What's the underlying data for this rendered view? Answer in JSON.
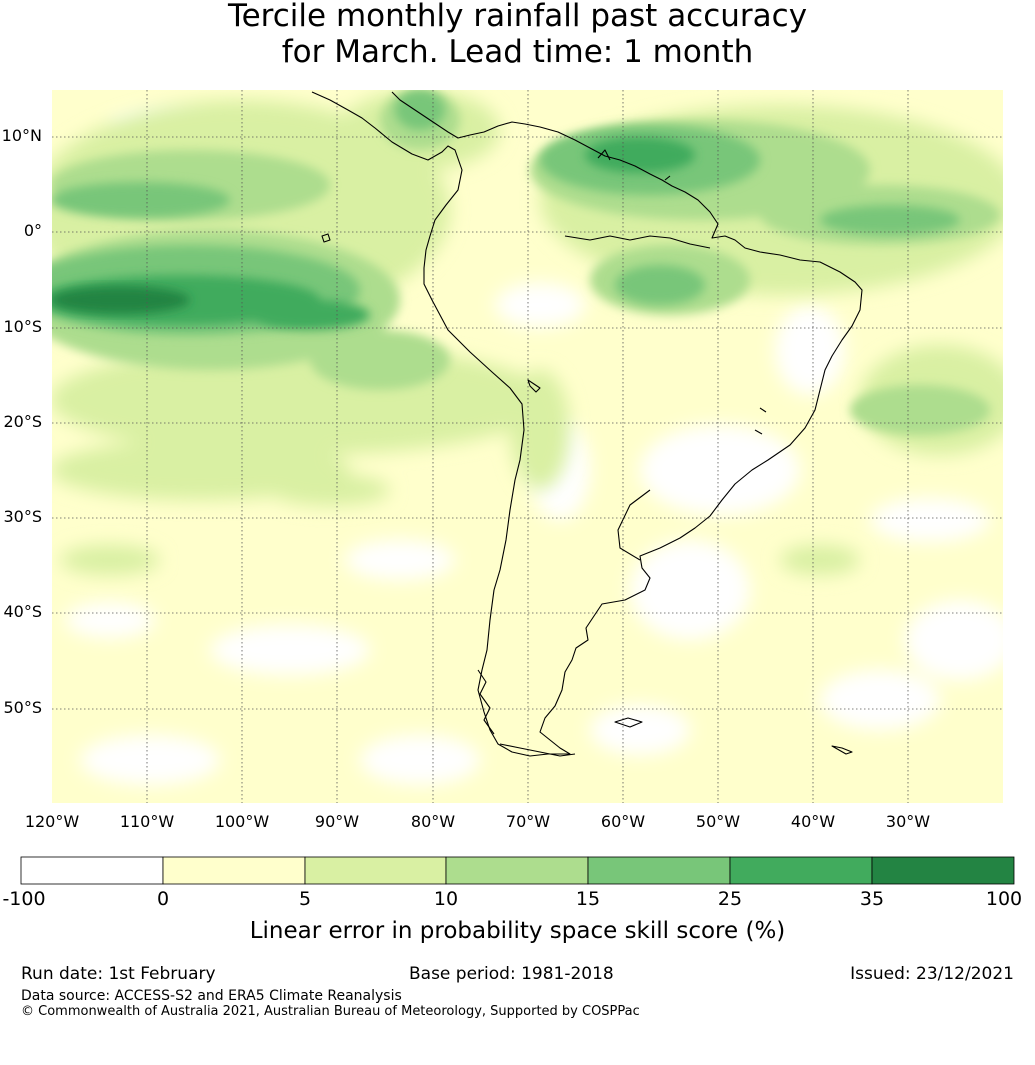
{
  "title": {
    "line1": "Tercile monthly rainfall past accuracy",
    "line2": "for March. Lead time: 1 month"
  },
  "map": {
    "region": "South America",
    "lat_range": [
      -60,
      15
    ],
    "lon_range": [
      -120,
      -20
    ],
    "lat_labels": [
      "10°N",
      "0°",
      "10°S",
      "20°S",
      "30°S",
      "40°S",
      "50°S"
    ],
    "lon_labels": [
      "120°W",
      "110°W",
      "100°W",
      "90°W",
      "80°W",
      "70°W",
      "60°W",
      "50°W",
      "40°W",
      "30°W"
    ],
    "gridlines": "dotted",
    "coastlines": true
  },
  "colorbar": {
    "ticks": [
      "-100",
      "0",
      "5",
      "10",
      "15",
      "25",
      "35",
      "100"
    ],
    "colors": [
      "#ffffff",
      "#ffffcc",
      "#d9f0a3",
      "#addd8e",
      "#78c679",
      "#41ab5d",
      "#238443"
    ],
    "label": "Linear error in probability space skill score (%)"
  },
  "footer": {
    "run_date": "Run date: 1st February",
    "base_period": "Base period: 1981-2018",
    "issued": "Issued: 23/12/2021",
    "data_source": "Data source: ACCESS-S2 and ERA5 Climate Reanalysis",
    "copyright": "© Commonwealth of Australia 2021, Australian Bureau of Meteorology, Supported by COSPPac"
  }
}
